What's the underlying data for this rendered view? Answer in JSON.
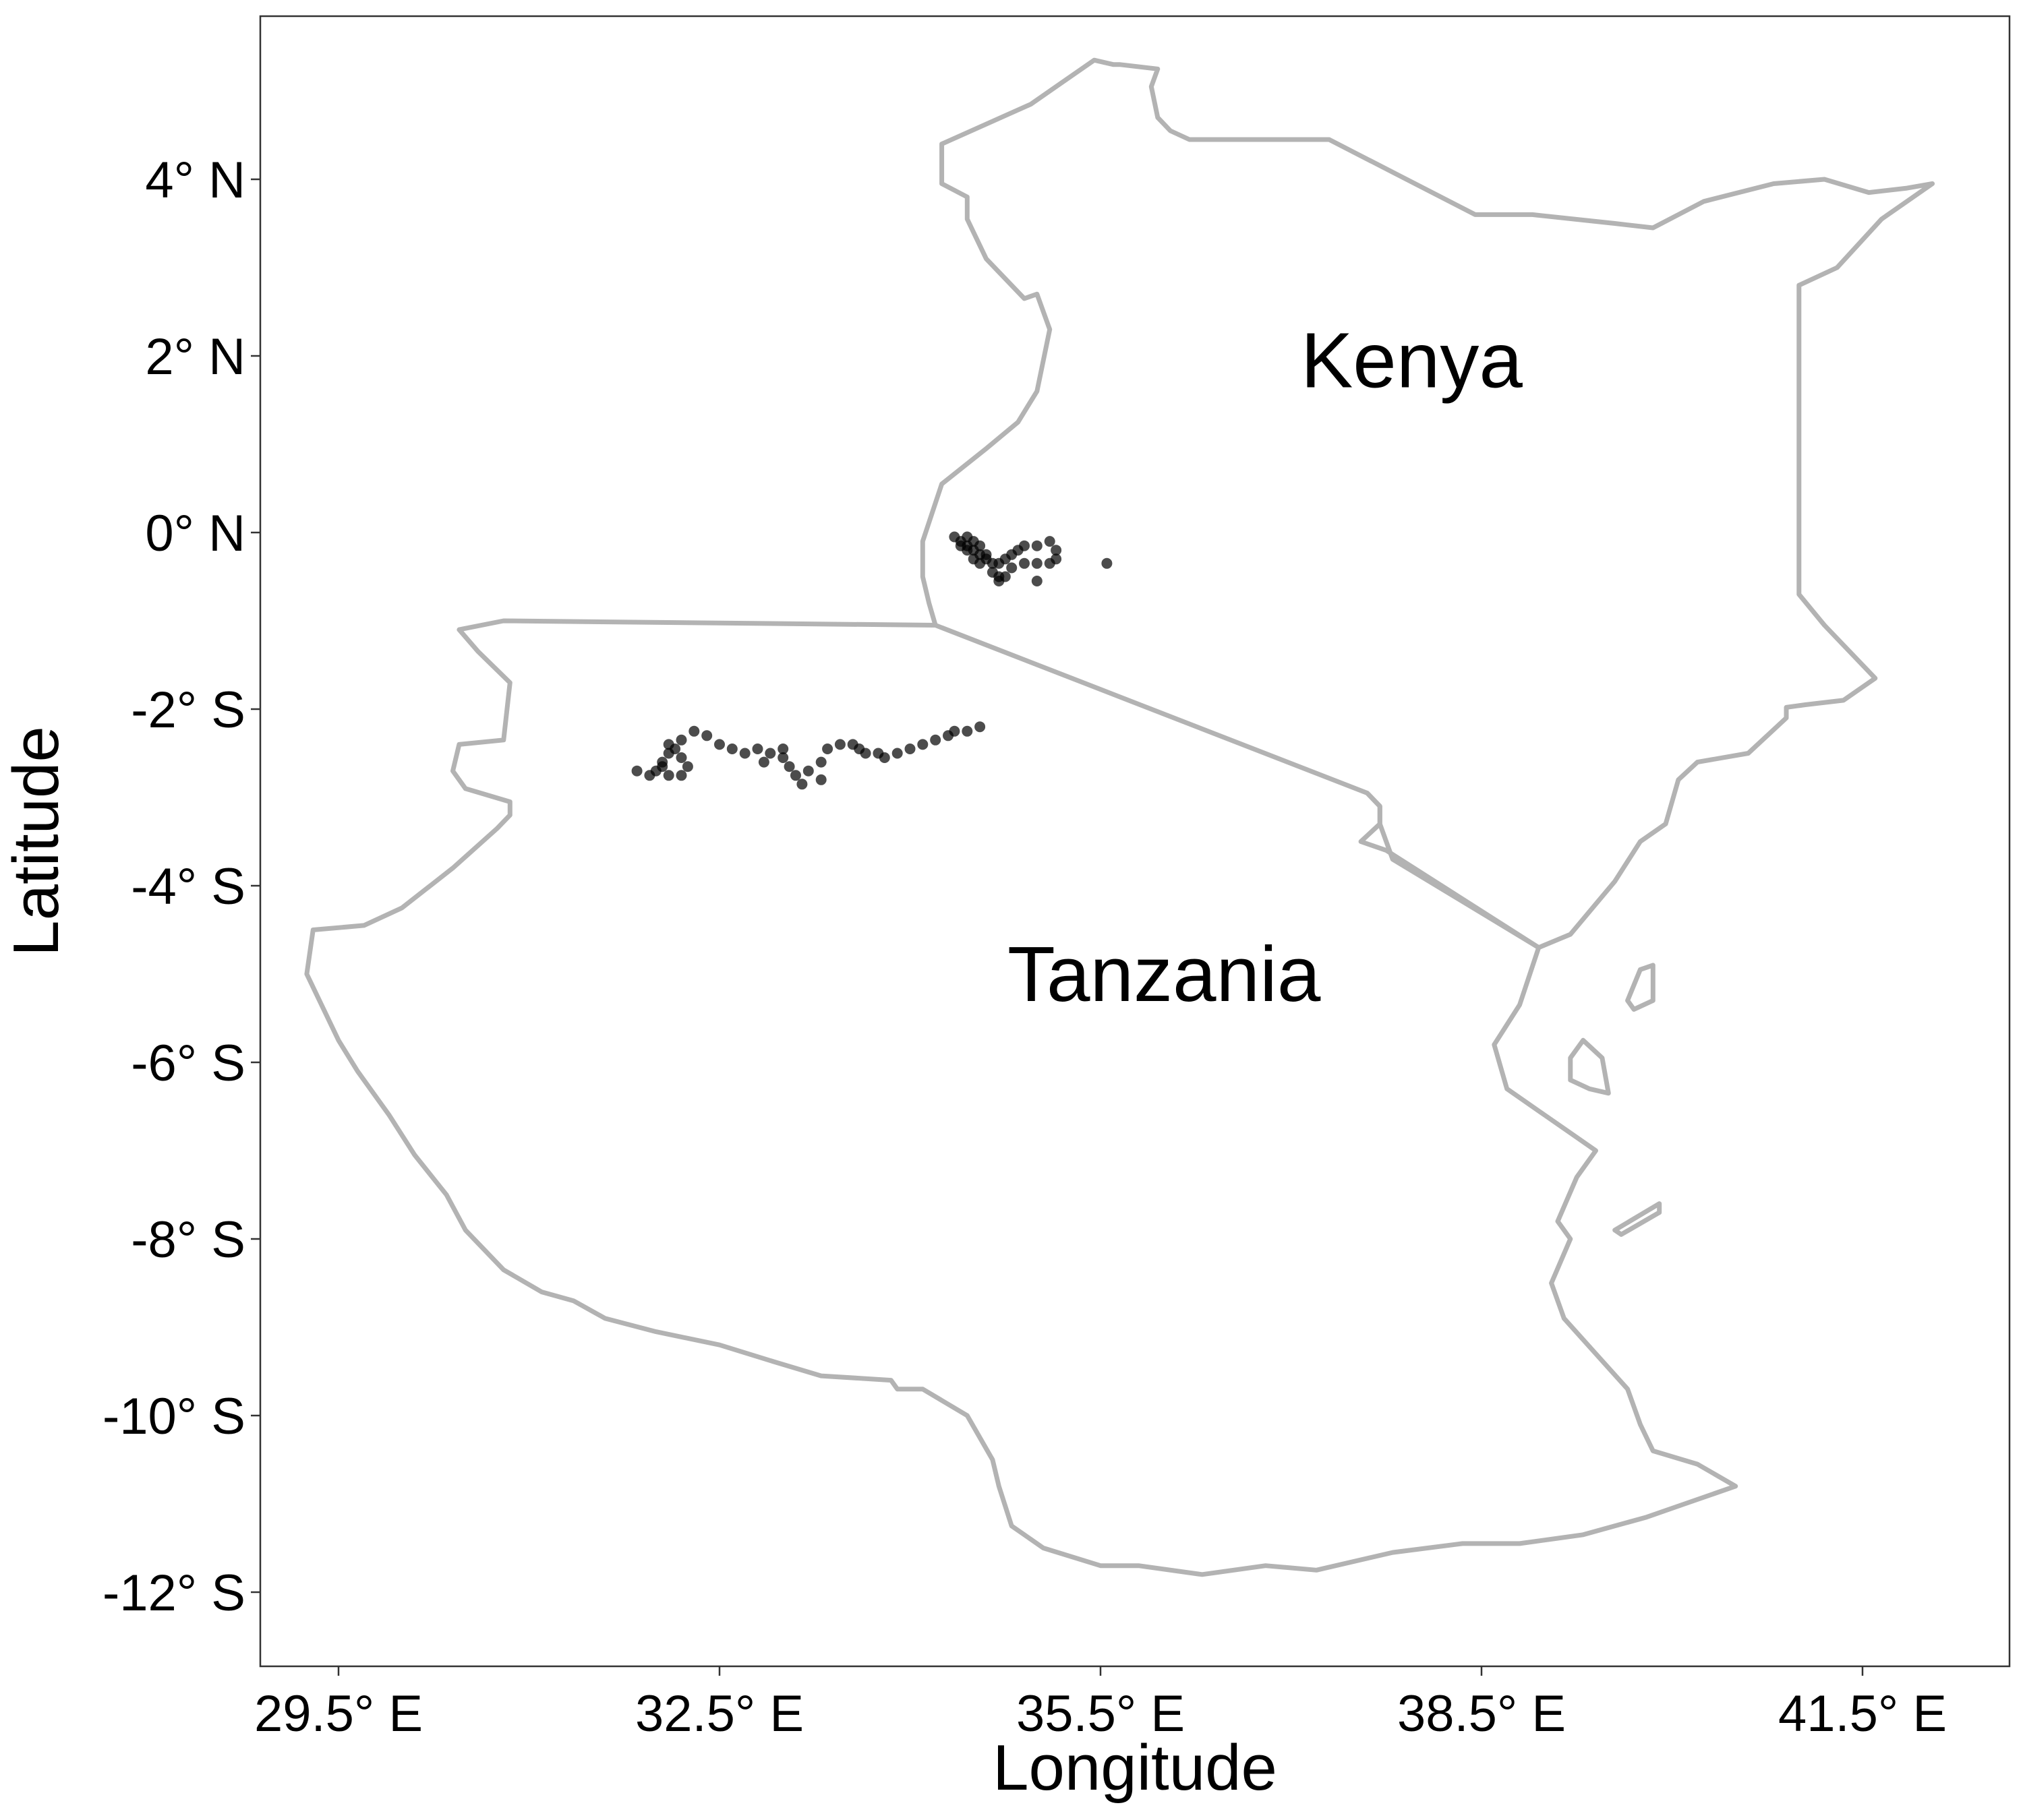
{
  "chart_data": {
    "type": "map",
    "xlabel": "Longitude",
    "ylabel": "Latitude",
    "xlim": [
      28.9,
      42.6
    ],
    "ylim": [
      -12.8,
      5.8
    ],
    "x_ticks": [
      {
        "value": 29.5,
        "label": "29.5° E"
      },
      {
        "value": 32.5,
        "label": "32.5° E"
      },
      {
        "value": 35.5,
        "label": "35.5° E"
      },
      {
        "value": 38.5,
        "label": "38.5° E"
      },
      {
        "value": 41.5,
        "label": "41.5° E"
      }
    ],
    "y_ticks": [
      {
        "value": 4,
        "label": "4° N"
      },
      {
        "value": 2,
        "label": "2° N"
      },
      {
        "value": 0,
        "label": "0° N"
      },
      {
        "value": -2,
        "label": "-2° S"
      },
      {
        "value": -4,
        "label": "-4° S"
      },
      {
        "value": -6,
        "label": "-6° S"
      },
      {
        "value": -8,
        "label": "-8° S"
      },
      {
        "value": -10,
        "label": "-10° S"
      },
      {
        "value": -12,
        "label": "-12° S"
      }
    ],
    "grid": false,
    "country_labels": [
      {
        "name": "Kenya",
        "lon": 37.95,
        "lat": 1.95
      },
      {
        "name": "Tanzania",
        "lon": 36.0,
        "lat": -5.0
      }
    ],
    "colors": {
      "border": "#b3b3b3",
      "points": "#000000",
      "panel_border": "#333333"
    },
    "borders": [
      {
        "name": "Kenya",
        "coords": [
          [
            34.2,
            -1.05
          ],
          [
            34.15,
            -0.8
          ],
          [
            34.1,
            -0.5
          ],
          [
            34.1,
            -0.1
          ],
          [
            34.25,
            0.55
          ],
          [
            34.6,
            0.95
          ],
          [
            34.85,
            1.25
          ],
          [
            35.0,
            1.6
          ],
          [
            35.1,
            2.3
          ],
          [
            35.0,
            2.7
          ],
          [
            34.9,
            2.65
          ],
          [
            34.6,
            3.1
          ],
          [
            34.45,
            3.55
          ],
          [
            34.45,
            3.8
          ],
          [
            34.25,
            3.95
          ],
          [
            34.25,
            4.4
          ],
          [
            34.95,
            4.85
          ],
          [
            35.45,
            5.35
          ],
          [
            35.6,
            5.3
          ],
          [
            35.65,
            5.3
          ],
          [
            35.95,
            5.25
          ],
          [
            35.9,
            5.05
          ],
          [
            35.95,
            4.7
          ],
          [
            36.05,
            4.55
          ],
          [
            36.2,
            4.45
          ],
          [
            37.3,
            4.45
          ],
          [
            38.45,
            3.6
          ],
          [
            38.9,
            3.6
          ],
          [
            39.55,
            3.5
          ],
          [
            39.85,
            3.45
          ],
          [
            40.25,
            3.75
          ],
          [
            40.8,
            3.95
          ],
          [
            41.2,
            4.0
          ],
          [
            41.55,
            3.85
          ],
          [
            41.85,
            3.9
          ],
          [
            42.05,
            3.95
          ],
          [
            41.65,
            3.55
          ],
          [
            41.3,
            3.0
          ],
          [
            41.0,
            2.8
          ],
          [
            41.0,
            2.4
          ],
          [
            41.0,
            1.7
          ],
          [
            41.0,
            0.8
          ],
          [
            41.0,
            -0.7
          ],
          [
            41.2,
            -1.05
          ],
          [
            41.6,
            -1.65
          ],
          [
            41.35,
            -1.9
          ],
          [
            41.05,
            -1.95
          ],
          [
            40.9,
            -1.98
          ],
          [
            40.9,
            -2.1
          ],
          [
            40.6,
            -2.5
          ],
          [
            40.2,
            -2.6
          ],
          [
            40.05,
            -2.8
          ],
          [
            39.95,
            -3.3
          ],
          [
            39.75,
            -3.5
          ],
          [
            39.55,
            -3.95
          ],
          [
            39.2,
            -4.55
          ],
          [
            38.95,
            -4.7
          ],
          [
            37.8,
            -3.7
          ],
          [
            37.7,
            -3.3
          ],
          [
            37.7,
            -3.1
          ],
          [
            37.6,
            -2.95
          ]
        ]
      },
      {
        "name": "Tanzania",
        "coords": [
          [
            34.2,
            -1.05
          ],
          [
            37.6,
            -2.95
          ],
          [
            37.7,
            -3.1
          ],
          [
            37.7,
            -3.3
          ],
          [
            37.55,
            -3.5
          ],
          [
            37.75,
            -3.6
          ],
          [
            38.95,
            -4.7
          ],
          [
            38.8,
            -5.35
          ],
          [
            38.6,
            -5.8
          ],
          [
            38.7,
            -6.3
          ],
          [
            38.9,
            -6.5
          ],
          [
            39.2,
            -6.8
          ],
          [
            39.4,
            -7.0
          ],
          [
            39.25,
            -7.3
          ],
          [
            39.1,
            -7.8
          ],
          [
            39.2,
            -8.0
          ],
          [
            39.05,
            -8.5
          ],
          [
            39.15,
            -8.9
          ],
          [
            39.4,
            -9.3
          ],
          [
            39.65,
            -9.7
          ],
          [
            39.75,
            -10.1
          ],
          [
            39.85,
            -10.4
          ],
          [
            40.2,
            -10.55
          ],
          [
            40.5,
            -10.8
          ],
          [
            40.1,
            -11.0
          ],
          [
            39.8,
            -11.15
          ],
          [
            39.3,
            -11.35
          ],
          [
            38.8,
            -11.45
          ],
          [
            38.35,
            -11.45
          ],
          [
            37.8,
            -11.55
          ],
          [
            37.2,
            -11.75
          ],
          [
            36.8,
            -11.7
          ],
          [
            36.3,
            -11.8
          ],
          [
            35.8,
            -11.7
          ],
          [
            35.5,
            -11.7
          ],
          [
            35.05,
            -11.5
          ],
          [
            34.95,
            -11.4
          ],
          [
            34.8,
            -11.25
          ],
          [
            34.7,
            -10.8
          ],
          [
            34.65,
            -10.5
          ],
          [
            34.45,
            -10.0
          ],
          [
            34.1,
            -9.7
          ],
          [
            33.9,
            -9.7
          ],
          [
            33.85,
            -9.6
          ],
          [
            33.3,
            -9.55
          ],
          [
            32.95,
            -9.4
          ],
          [
            32.5,
            -9.2
          ],
          [
            32.0,
            -9.05
          ],
          [
            31.6,
            -8.9
          ],
          [
            31.35,
            -8.7
          ],
          [
            31.1,
            -8.6
          ],
          [
            30.8,
            -8.35
          ],
          [
            30.5,
            -7.9
          ],
          [
            30.35,
            -7.5
          ],
          [
            30.1,
            -7.05
          ],
          [
            29.9,
            -6.6
          ],
          [
            29.65,
            -6.1
          ],
          [
            29.5,
            -5.75
          ],
          [
            29.25,
            -5.0
          ],
          [
            29.3,
            -4.5
          ],
          [
            29.7,
            -4.45
          ],
          [
            30.0,
            -4.25
          ],
          [
            30.4,
            -3.8
          ],
          [
            30.75,
            -3.35
          ],
          [
            30.85,
            -3.2
          ],
          [
            30.85,
            -3.05
          ],
          [
            30.5,
            -2.9
          ],
          [
            30.4,
            -2.7
          ],
          [
            30.45,
            -2.4
          ],
          [
            30.8,
            -2.35
          ],
          [
            30.85,
            -1.7
          ],
          [
            30.6,
            -1.35
          ],
          [
            30.45,
            -1.1
          ],
          [
            30.8,
            -1.0
          ],
          [
            34.2,
            -1.05
          ]
        ]
      },
      {
        "name": "Zanzibar",
        "coords": [
          [
            39.3,
            -5.75
          ],
          [
            39.45,
            -5.95
          ],
          [
            39.5,
            -6.35
          ],
          [
            39.35,
            -6.3
          ],
          [
            39.2,
            -6.2
          ],
          [
            39.2,
            -5.95
          ],
          [
            39.3,
            -5.75
          ]
        ]
      },
      {
        "name": "Pemba",
        "coords": [
          [
            39.75,
            -4.95
          ],
          [
            39.85,
            -4.9
          ],
          [
            39.85,
            -5.3
          ],
          [
            39.7,
            -5.4
          ],
          [
            39.65,
            -5.3
          ],
          [
            39.75,
            -4.95
          ]
        ]
      },
      {
        "name": "Mafia",
        "coords": [
          [
            39.55,
            -7.9
          ],
          [
            39.9,
            -7.6
          ],
          [
            39.9,
            -7.7
          ],
          [
            39.6,
            -7.95
          ],
          [
            39.55,
            -7.9
          ]
        ]
      }
    ],
    "series": [
      {
        "type": "scatter",
        "points": [
          [
            34.35,
            -0.05
          ],
          [
            34.4,
            -0.1
          ],
          [
            34.45,
            -0.15
          ],
          [
            34.5,
            -0.2
          ],
          [
            34.55,
            -0.25
          ],
          [
            34.6,
            -0.3
          ],
          [
            34.65,
            -0.35
          ],
          [
            34.65,
            -0.45
          ],
          [
            34.7,
            -0.5
          ],
          [
            34.7,
            -0.55
          ],
          [
            34.75,
            -0.5
          ],
          [
            34.8,
            -0.4
          ],
          [
            34.9,
            -0.35
          ],
          [
            35.0,
            -0.35
          ],
          [
            35.1,
            -0.35
          ],
          [
            35.15,
            -0.3
          ],
          [
            35.15,
            -0.2
          ],
          [
            35.1,
            -0.1
          ],
          [
            35.0,
            -0.15
          ],
          [
            34.9,
            -0.15
          ],
          [
            34.85,
            -0.2
          ],
          [
            34.8,
            -0.25
          ],
          [
            34.75,
            -0.3
          ],
          [
            34.7,
            -0.35
          ],
          [
            34.6,
            -0.25
          ],
          [
            34.55,
            -0.15
          ],
          [
            34.5,
            -0.1
          ],
          [
            34.45,
            -0.05
          ],
          [
            34.4,
            -0.15
          ],
          [
            34.45,
            -0.2
          ],
          [
            34.5,
            -0.3
          ],
          [
            34.55,
            -0.35
          ],
          [
            35.0,
            -0.55
          ],
          [
            35.55,
            -0.35
          ],
          [
            31.85,
            -2.7
          ],
          [
            31.95,
            -2.75
          ],
          [
            32.0,
            -2.7
          ],
          [
            32.05,
            -2.6
          ],
          [
            32.1,
            -2.5
          ],
          [
            32.15,
            -2.45
          ],
          [
            32.2,
            -2.55
          ],
          [
            32.25,
            -2.65
          ],
          [
            32.2,
            -2.75
          ],
          [
            32.1,
            -2.75
          ],
          [
            32.05,
            -2.65
          ],
          [
            32.1,
            -2.4
          ],
          [
            32.2,
            -2.35
          ],
          [
            32.3,
            -2.25
          ],
          [
            32.4,
            -2.3
          ],
          [
            32.5,
            -2.4
          ],
          [
            32.6,
            -2.45
          ],
          [
            32.7,
            -2.5
          ],
          [
            32.8,
            -2.45
          ],
          [
            32.9,
            -2.5
          ],
          [
            33.0,
            -2.55
          ],
          [
            33.05,
            -2.65
          ],
          [
            33.1,
            -2.75
          ],
          [
            33.2,
            -2.7
          ],
          [
            33.3,
            -2.6
          ],
          [
            33.35,
            -2.45
          ],
          [
            33.45,
            -2.4
          ],
          [
            33.55,
            -2.4
          ],
          [
            33.6,
            -2.45
          ],
          [
            33.65,
            -2.5
          ],
          [
            33.75,
            -2.5
          ],
          [
            33.8,
            -2.55
          ],
          [
            33.9,
            -2.5
          ],
          [
            34.0,
            -2.45
          ],
          [
            34.1,
            -2.4
          ],
          [
            34.2,
            -2.35
          ],
          [
            34.3,
            -2.3
          ],
          [
            34.35,
            -2.25
          ],
          [
            34.45,
            -2.25
          ],
          [
            34.55,
            -2.2
          ],
          [
            33.15,
            -2.85
          ],
          [
            33.3,
            -2.8
          ],
          [
            32.85,
            -2.6
          ],
          [
            33.0,
            -2.45
          ]
        ]
      }
    ]
  }
}
